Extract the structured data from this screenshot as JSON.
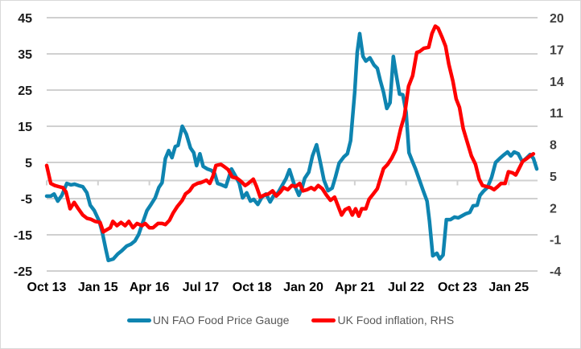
{
  "chart_data": {
    "type": "line",
    "title": "",
    "xlabel": "",
    "ylabel": "",
    "y2label": "",
    "grid": true,
    "legend_position": "bottom",
    "x_tick_labels": [
      "Oct 13",
      "Jan 15",
      "Apr 16",
      "Jul 17",
      "Oct 18",
      "Jan 20",
      "Apr 21",
      "Jul 22",
      "Oct 23",
      "Jan 25"
    ],
    "x_tick_values": [
      2013.75,
      2015.0,
      2016.25,
      2017.5,
      2018.75,
      2020.0,
      2021.25,
      2022.5,
      2023.75,
      2025.0
    ],
    "xlim": [
      2013.75,
      2025.7
    ],
    "y_left": {
      "ticks": [
        45,
        35,
        25,
        15,
        5,
        -5,
        -15,
        -25
      ],
      "lim": [
        -25,
        45
      ]
    },
    "y_right": {
      "ticks": [
        20,
        17,
        14,
        11,
        8,
        5,
        2,
        -1,
        -4
      ],
      "lim": [
        -4,
        20
      ]
    },
    "series": [
      {
        "name": "UN FAO Food Price Gauge",
        "axis": "left",
        "color": "#0E84B0",
        "points": [
          [
            2013.75,
            -4.3
          ],
          [
            2013.85,
            -4.3
          ],
          [
            2013.93,
            -3.7
          ],
          [
            2014.02,
            -5.7
          ],
          [
            2014.12,
            -4.1
          ],
          [
            2014.24,
            -0.8
          ],
          [
            2014.34,
            -1.2
          ],
          [
            2014.43,
            -1.0
          ],
          [
            2014.53,
            -1.4
          ],
          [
            2014.63,
            -1.7
          ],
          [
            2014.73,
            -3.4
          ],
          [
            2014.81,
            -6.8
          ],
          [
            2014.91,
            -8.3
          ],
          [
            2015.03,
            -11.2
          ],
          [
            2015.11,
            -14.6
          ],
          [
            2015.19,
            -19.0
          ],
          [
            2015.25,
            -22.1
          ],
          [
            2015.37,
            -21.7
          ],
          [
            2015.48,
            -20.3
          ],
          [
            2015.58,
            -19.4
          ],
          [
            2015.7,
            -18.1
          ],
          [
            2015.8,
            -17.6
          ],
          [
            2015.9,
            -16.7
          ],
          [
            2015.99,
            -14.9
          ],
          [
            2016.09,
            -11.6
          ],
          [
            2016.19,
            -8.3
          ],
          [
            2016.29,
            -6.6
          ],
          [
            2016.39,
            -4.8
          ],
          [
            2016.48,
            -1.9
          ],
          [
            2016.56,
            -0.6
          ],
          [
            2016.64,
            6.1
          ],
          [
            2016.72,
            8.3
          ],
          [
            2016.8,
            6.3
          ],
          [
            2016.88,
            9.4
          ],
          [
            2016.95,
            9.7
          ],
          [
            2017.05,
            15.0
          ],
          [
            2017.15,
            12.8
          ],
          [
            2017.25,
            9.0
          ],
          [
            2017.33,
            7.7
          ],
          [
            2017.4,
            4.1
          ],
          [
            2017.48,
            7.4
          ],
          [
            2017.56,
            3.9
          ],
          [
            2017.66,
            3.2
          ],
          [
            2017.76,
            2.8
          ],
          [
            2017.84,
            1.9
          ],
          [
            2017.91,
            -0.8
          ],
          [
            2018.01,
            -1.2
          ],
          [
            2018.11,
            -1.7
          ],
          [
            2018.25,
            3.2
          ],
          [
            2018.34,
            1.4
          ],
          [
            2018.44,
            -0.8
          ],
          [
            2018.52,
            -4.8
          ],
          [
            2018.62,
            -3.4
          ],
          [
            2018.71,
            -5.7
          ],
          [
            2018.79,
            -5.2
          ],
          [
            2018.89,
            -6.6
          ],
          [
            2018.99,
            -4.6
          ],
          [
            2019.09,
            -3.7
          ],
          [
            2019.19,
            -5.9
          ],
          [
            2019.28,
            -4.1
          ],
          [
            2019.38,
            -3.4
          ],
          [
            2019.48,
            -1.4
          ],
          [
            2019.58,
            0.6
          ],
          [
            2019.66,
            3.0
          ],
          [
            2019.78,
            -1.2
          ],
          [
            2019.89,
            -4.1
          ],
          [
            2019.97,
            -1.9
          ],
          [
            2020.03,
            0.6
          ],
          [
            2020.13,
            2.3
          ],
          [
            2020.22,
            6.8
          ],
          [
            2020.32,
            9.9
          ],
          [
            2020.42,
            4.6
          ],
          [
            2020.5,
            0.1
          ],
          [
            2020.6,
            -2.8
          ],
          [
            2020.7,
            -2.1
          ],
          [
            2020.78,
            1.0
          ],
          [
            2020.87,
            4.8
          ],
          [
            2020.99,
            6.6
          ],
          [
            2021.07,
            7.4
          ],
          [
            2021.15,
            11.0
          ],
          [
            2021.25,
            24.4
          ],
          [
            2021.31,
            35.4
          ],
          [
            2021.37,
            40.6
          ],
          [
            2021.45,
            34.3
          ],
          [
            2021.52,
            33.0
          ],
          [
            2021.62,
            33.9
          ],
          [
            2021.72,
            31.9
          ],
          [
            2021.8,
            31.0
          ],
          [
            2021.87,
            27.7
          ],
          [
            2021.95,
            24.4
          ],
          [
            2022.03,
            19.9
          ],
          [
            2022.11,
            21.5
          ],
          [
            2022.19,
            34.3
          ],
          [
            2022.25,
            29.9
          ],
          [
            2022.34,
            23.9
          ],
          [
            2022.42,
            23.7
          ],
          [
            2022.5,
            18.8
          ],
          [
            2022.57,
            7.7
          ],
          [
            2022.65,
            5.4
          ],
          [
            2022.73,
            3.2
          ],
          [
            2022.81,
            0.6
          ],
          [
            2022.91,
            -2.6
          ],
          [
            2023.01,
            -5.7
          ],
          [
            2023.07,
            -11.2
          ],
          [
            2023.15,
            -20.8
          ],
          [
            2023.25,
            -20.1
          ],
          [
            2023.32,
            -21.7
          ],
          [
            2023.4,
            -20.6
          ],
          [
            2023.48,
            -10.8
          ],
          [
            2023.58,
            -10.8
          ],
          [
            2023.68,
            -10.1
          ],
          [
            2023.77,
            -10.3
          ],
          [
            2023.87,
            -9.7
          ],
          [
            2023.95,
            -9.2
          ],
          [
            2024.05,
            -8.8
          ],
          [
            2024.13,
            -7.0
          ],
          [
            2024.23,
            -6.8
          ],
          [
            2024.3,
            -4.1
          ],
          [
            2024.38,
            -3.0
          ],
          [
            2024.48,
            -1.9
          ],
          [
            2024.58,
            0.8
          ],
          [
            2024.68,
            5.0
          ],
          [
            2024.78,
            6.1
          ],
          [
            2024.87,
            7.0
          ],
          [
            2024.97,
            7.9
          ],
          [
            2025.05,
            6.8
          ],
          [
            2025.13,
            7.9
          ],
          [
            2025.23,
            7.4
          ],
          [
            2025.33,
            5.2
          ],
          [
            2025.42,
            6.1
          ],
          [
            2025.52,
            7.2
          ],
          [
            2025.6,
            6.1
          ],
          [
            2025.68,
            3.2
          ]
        ]
      },
      {
        "name": "UK Food inflation, RHS",
        "axis": "right",
        "color": "#FF0000",
        "points": [
          [
            2013.75,
            6.0
          ],
          [
            2013.85,
            4.3
          ],
          [
            2013.95,
            4.1
          ],
          [
            2014.04,
            4.0
          ],
          [
            2014.14,
            3.9
          ],
          [
            2014.22,
            3.5
          ],
          [
            2014.32,
            1.9
          ],
          [
            2014.42,
            2.5
          ],
          [
            2014.52,
            1.9
          ],
          [
            2014.63,
            1.3
          ],
          [
            2014.73,
            1.0
          ],
          [
            2014.83,
            0.9
          ],
          [
            2014.93,
            0.7
          ],
          [
            2015.05,
            0.6
          ],
          [
            2015.13,
            -0.3
          ],
          [
            2015.21,
            -0.1
          ],
          [
            2015.3,
            0.1
          ],
          [
            2015.36,
            0.7
          ],
          [
            2015.46,
            0.3
          ],
          [
            2015.56,
            0.6
          ],
          [
            2015.66,
            0.3
          ],
          [
            2015.75,
            0.7
          ],
          [
            2015.85,
            0.1
          ],
          [
            2015.95,
            0.5
          ],
          [
            2016.07,
            0.3
          ],
          [
            2016.15,
            0.5
          ],
          [
            2016.25,
            0.1
          ],
          [
            2016.34,
            0.1
          ],
          [
            2016.46,
            0.5
          ],
          [
            2016.56,
            0.5
          ],
          [
            2016.64,
            0.4
          ],
          [
            2016.74,
            0.8
          ],
          [
            2016.83,
            1.5
          ],
          [
            2016.93,
            2.1
          ],
          [
            2017.05,
            2.7
          ],
          [
            2017.13,
            3.3
          ],
          [
            2017.23,
            3.6
          ],
          [
            2017.32,
            4.1
          ],
          [
            2017.42,
            4.3
          ],
          [
            2017.52,
            4.4
          ],
          [
            2017.64,
            4.6
          ],
          [
            2017.72,
            4.3
          ],
          [
            2017.8,
            5.0
          ],
          [
            2017.87,
            6.0
          ],
          [
            2017.99,
            6.1
          ],
          [
            2018.07,
            5.9
          ],
          [
            2018.17,
            5.6
          ],
          [
            2018.27,
            4.9
          ],
          [
            2018.38,
            4.8
          ],
          [
            2018.48,
            4.5
          ],
          [
            2018.58,
            4.1
          ],
          [
            2018.66,
            4.3
          ],
          [
            2018.78,
            4.7
          ],
          [
            2018.86,
            4.0
          ],
          [
            2018.95,
            3.0
          ],
          [
            2019.05,
            3.2
          ],
          [
            2019.15,
            3.3
          ],
          [
            2019.25,
            3.6
          ],
          [
            2019.34,
            3.1
          ],
          [
            2019.44,
            3.5
          ],
          [
            2019.52,
            3.9
          ],
          [
            2019.62,
            3.7
          ],
          [
            2019.72,
            4.1
          ],
          [
            2019.81,
            4.0
          ],
          [
            2019.91,
            4.3
          ],
          [
            2019.99,
            3.6
          ],
          [
            2020.09,
            3.7
          ],
          [
            2020.19,
            3.9
          ],
          [
            2020.27,
            3.7
          ],
          [
            2020.36,
            4.1
          ],
          [
            2020.46,
            3.8
          ],
          [
            2020.56,
            3.2
          ],
          [
            2020.66,
            2.7
          ],
          [
            2020.76,
            3.0
          ],
          [
            2020.83,
            2.3
          ],
          [
            2020.93,
            1.3
          ],
          [
            2021.01,
            1.8
          ],
          [
            2021.11,
            2.0
          ],
          [
            2021.19,
            1.3
          ],
          [
            2021.27,
            1.9
          ],
          [
            2021.35,
            1.2
          ],
          [
            2021.42,
            1.9
          ],
          [
            2021.52,
            1.9
          ],
          [
            2021.6,
            2.8
          ],
          [
            2021.7,
            3.3
          ],
          [
            2021.8,
            3.8
          ],
          [
            2021.87,
            4.7
          ],
          [
            2021.95,
            5.7
          ],
          [
            2022.05,
            6.1
          ],
          [
            2022.15,
            6.7
          ],
          [
            2022.25,
            7.5
          ],
          [
            2022.37,
            9.5
          ],
          [
            2022.46,
            10.7
          ],
          [
            2022.56,
            13.5
          ],
          [
            2022.66,
            14.5
          ],
          [
            2022.76,
            16.7
          ],
          [
            2022.83,
            16.8
          ],
          [
            2022.93,
            17.1
          ],
          [
            2023.05,
            17.2
          ],
          [
            2023.13,
            18.5
          ],
          [
            2023.21,
            19.2
          ],
          [
            2023.28,
            19.0
          ],
          [
            2023.38,
            18.1
          ],
          [
            2023.46,
            17.3
          ],
          [
            2023.54,
            15.6
          ],
          [
            2023.64,
            14.0
          ],
          [
            2023.72,
            12.3
          ],
          [
            2023.8,
            11.5
          ],
          [
            2023.89,
            9.5
          ],
          [
            2023.99,
            8.2
          ],
          [
            2024.09,
            6.9
          ],
          [
            2024.19,
            6.1
          ],
          [
            2024.28,
            4.7
          ],
          [
            2024.36,
            4.1
          ],
          [
            2024.46,
            4.0
          ],
          [
            2024.56,
            3.9
          ],
          [
            2024.64,
            3.7
          ],
          [
            2024.73,
            4.0
          ],
          [
            2024.81,
            4.3
          ],
          [
            2024.91,
            4.3
          ],
          [
            2024.99,
            5.4
          ],
          [
            2025.09,
            5.3
          ],
          [
            2025.17,
            5.1
          ],
          [
            2025.25,
            5.7
          ],
          [
            2025.34,
            6.4
          ],
          [
            2025.42,
            6.6
          ],
          [
            2025.52,
            6.9
          ],
          [
            2025.6,
            7.1
          ]
        ]
      }
    ]
  }
}
